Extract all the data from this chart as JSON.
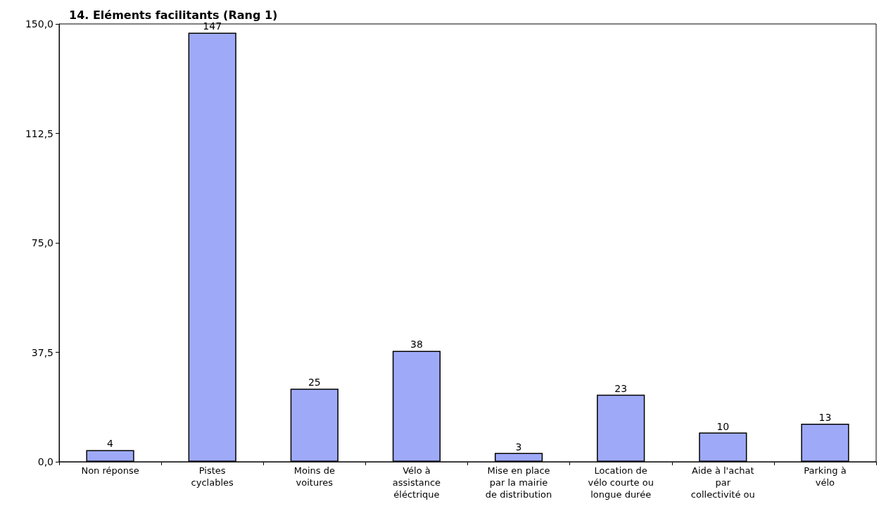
{
  "chart_data": {
    "type": "bar",
    "title": "14. Eléments facilitants (Rang 1)",
    "categories": [
      "Non réponse",
      "Pistes\ncyclables",
      "Moins de\nvoitures",
      "Vélo à\nassistance\néléctrique",
      "Mise en place\npar la mairie\nde distribution",
      "Location de\nvélo courte ou\nlongue durée",
      "Aide à l'achat\npar\ncollectivité ou",
      "Parking à\nvélo"
    ],
    "values": [
      4,
      147,
      25,
      38,
      3,
      23,
      10,
      13
    ],
    "color": "#9eaaf8",
    "ylim": [
      0,
      150
    ],
    "yticks": [
      {
        "value": 0,
        "label": "0,0"
      },
      {
        "value": 37.5,
        "label": "37,5"
      },
      {
        "value": 75,
        "label": "75,0"
      },
      {
        "value": 112.5,
        "label": "112,5"
      },
      {
        "value": 150,
        "label": "150,0"
      }
    ],
    "data_labels": true,
    "grid": false
  }
}
